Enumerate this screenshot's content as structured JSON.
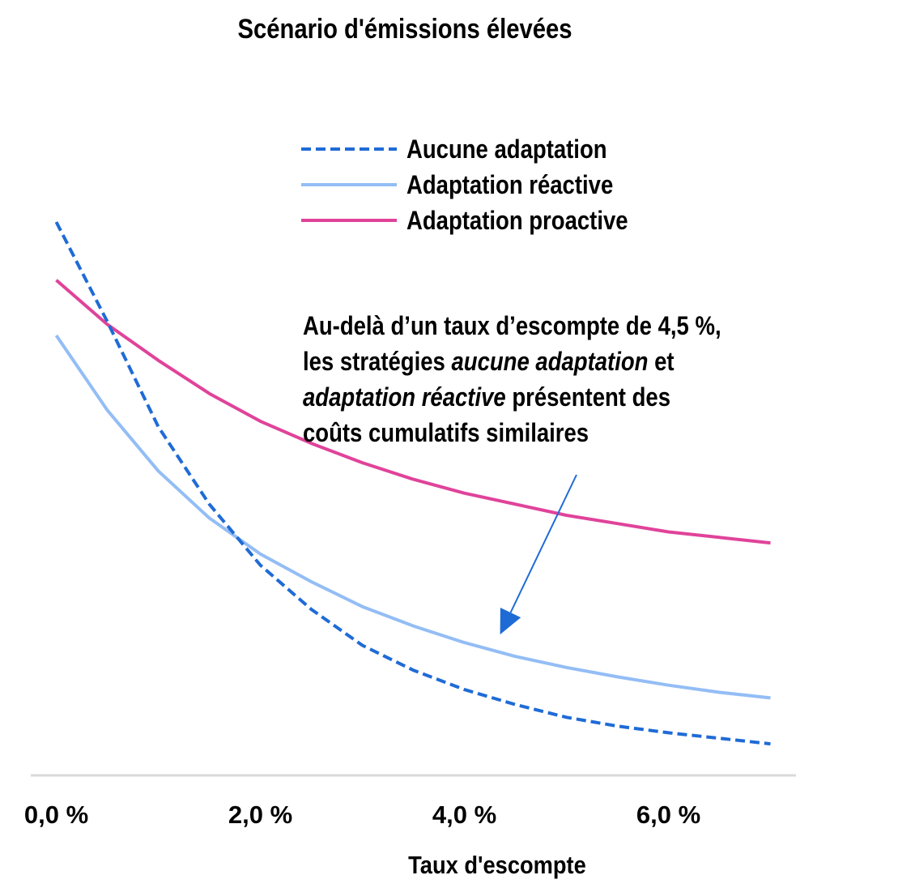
{
  "chart_data": {
    "type": "line",
    "title": "Scénario d'émissions élevées",
    "xlabel": "Taux d'escompte",
    "ylabel": "",
    "x": [
      0.0,
      0.5,
      1.0,
      1.5,
      2.0,
      2.5,
      3.0,
      3.5,
      4.0,
      4.5,
      5.0,
      5.5,
      6.0,
      6.5,
      7.0
    ],
    "xlim": [
      -0.25,
      7.25
    ],
    "ylim": [
      0,
      100
    ],
    "x_ticks": [
      0.0,
      2.0,
      4.0,
      6.0
    ],
    "x_tick_labels": [
      "0,0 %",
      "2,0 %",
      "4,0 %",
      "6,0 %"
    ],
    "grid": false,
    "y_axis_visible": false,
    "legend_position": "top-center",
    "series": [
      {
        "name": "Aucune adaptation",
        "color": "#1f6bd6",
        "style": "dashed",
        "values": [
          100.0,
          82.0,
          63.0,
          49.0,
          38.0,
          30.0,
          23.5,
          19.0,
          15.5,
          12.8,
          10.5,
          8.9,
          7.7,
          6.7,
          5.7
        ]
      },
      {
        "name": "Adaptation réactive",
        "color": "#93bdf5",
        "style": "solid",
        "values": [
          79.5,
          66.0,
          55.0,
          46.5,
          40.0,
          35.0,
          30.5,
          27.0,
          24.0,
          21.5,
          19.5,
          17.8,
          16.3,
          15.0,
          14.0
        ]
      },
      {
        "name": "Adaptation proactive",
        "color": "#e0439a",
        "style": "solid",
        "values": [
          89.5,
          81.5,
          75.0,
          69.0,
          64.0,
          60.0,
          56.5,
          53.5,
          51.0,
          49.0,
          47.0,
          45.5,
          44.0,
          43.0,
          42.0
        ]
      }
    ],
    "annotation": {
      "lines": [
        [
          {
            "text": "Au-delà d’un taux d’escompte de 4,5 %,",
            "italic": false
          }
        ],
        [
          {
            "text": "les stratégies ",
            "italic": false
          },
          {
            "text": "aucune adaptation",
            "italic": true
          },
          {
            "text": " et",
            "italic": false
          }
        ],
        [
          {
            "text": "adaptation réactive",
            "italic": true
          },
          {
            "text": " présentent des",
            "italic": false
          }
        ],
        [
          {
            "text": "coûts cumulatifs similaires",
            "italic": false
          }
        ]
      ],
      "arrow_color": "#1f6bd6",
      "arrow_target": {
        "x": 4.35,
        "y": 24.0
      }
    }
  }
}
